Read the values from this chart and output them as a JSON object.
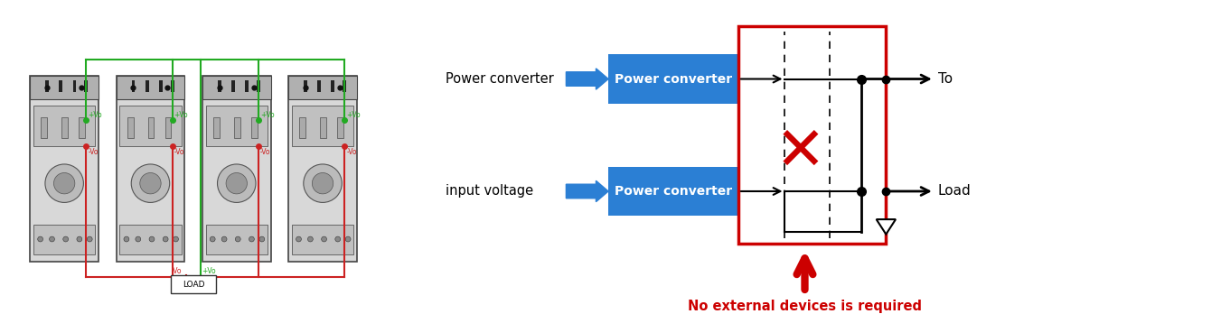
{
  "fig_width": 13.51,
  "fig_height": 3.48,
  "dpi": 100,
  "bg_color": "#ffffff",
  "left_panel": {
    "num_modules": 4,
    "module_color": "#d0d0d0",
    "pos_wire_color": "#22aa22",
    "neg_wire_color": "#cc2222",
    "load_label": "LOAD",
    "plus_vo_label": "+Vo",
    "minus_vo_label": "-Vo"
  },
  "right_panel": {
    "label1": "Power converter",
    "label2": "input voltage",
    "box1_label": "Power converter",
    "box2_label": "Power converter",
    "box_color": "#2b7fd4",
    "box_text_color": "#ffffff",
    "arrow_color": "#2b7fd4",
    "red_box_color": "#cc0000",
    "x_color": "#cc0000",
    "to_label": "To",
    "load_label": "Load",
    "annotation": "No external devices is required",
    "annotation_color": "#cc0000"
  }
}
